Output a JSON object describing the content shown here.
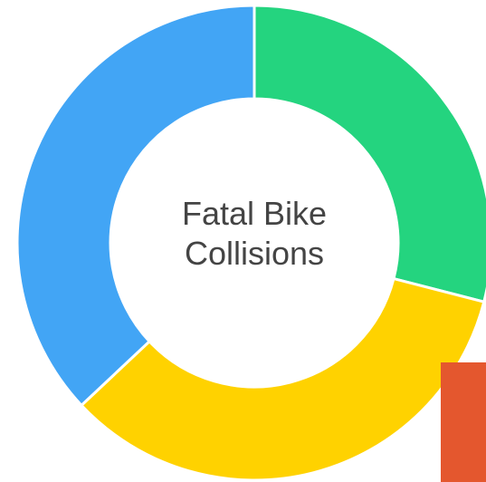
{
  "chart_data": {
    "type": "donut",
    "title": "Fatal Bike Collisions",
    "categories": [
      null,
      null,
      null
    ],
    "values": [
      29,
      34,
      37
    ],
    "colors": [
      "#24d47f",
      "#ffd200",
      "#42a5f5"
    ]
  }
}
